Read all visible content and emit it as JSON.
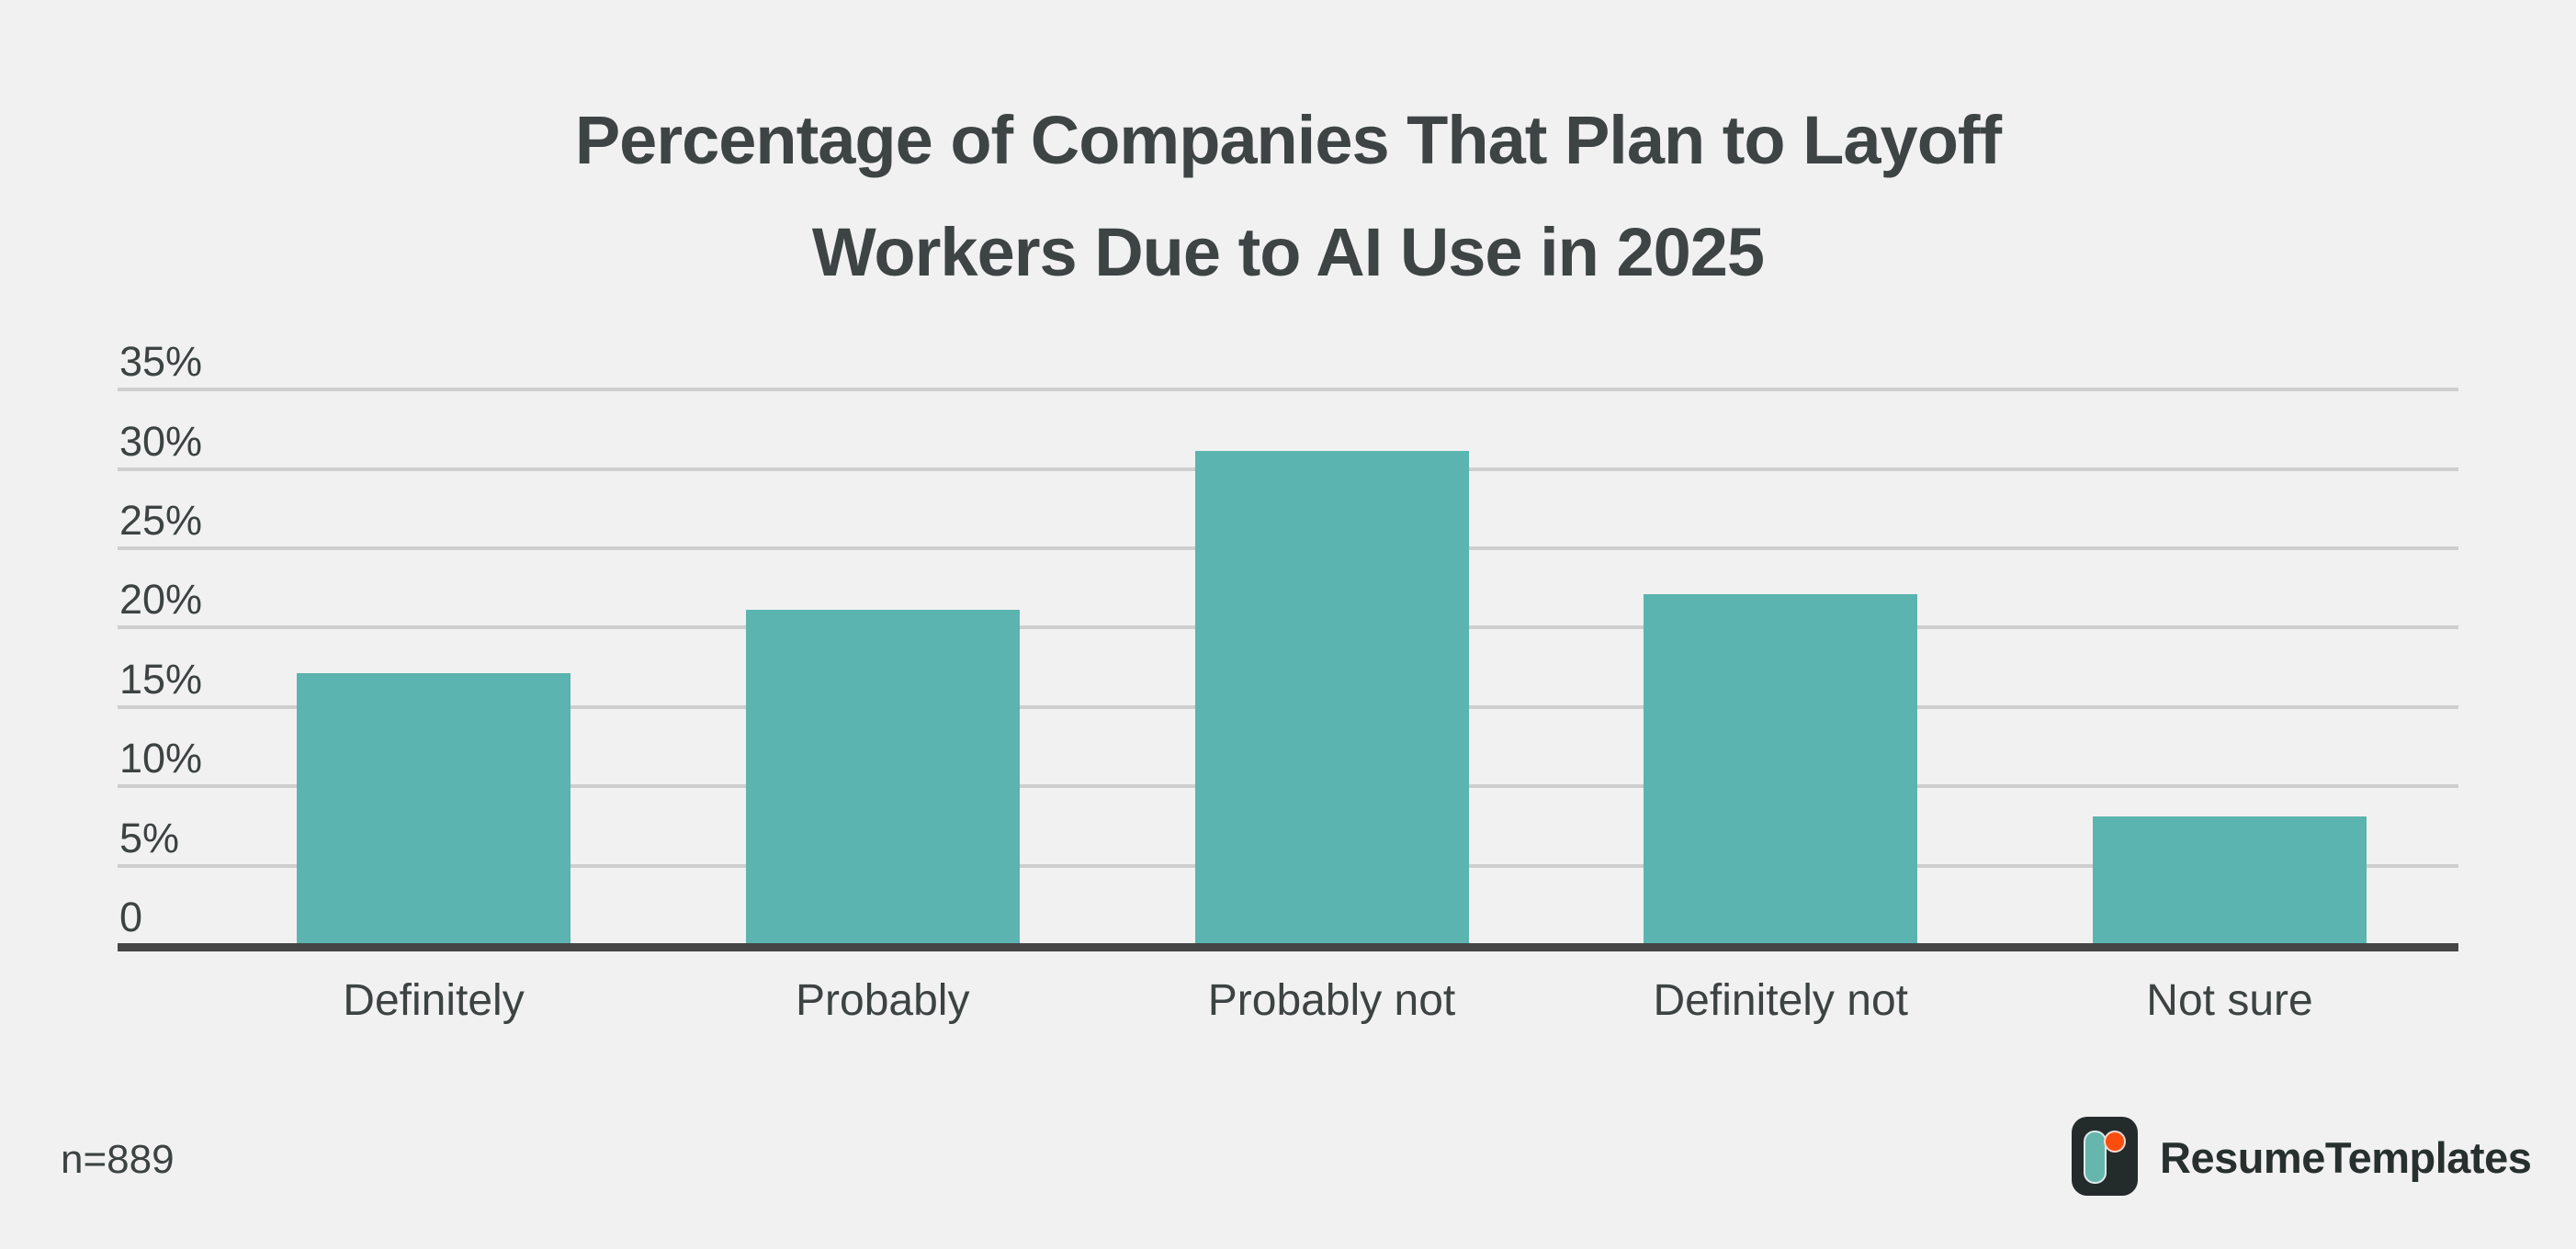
{
  "chart_data": {
    "type": "bar",
    "title": "Percentage of Companies That Plan to Layoff Workers Due to AI Use in 2025",
    "title_lines": [
      "Percentage of Companies That Plan to Layoff",
      "Workers Due to AI Use in 2025"
    ],
    "categories": [
      "Definitely",
      "Probably",
      "Probably not",
      "Definitely not",
      "Not sure"
    ],
    "values": [
      17,
      21,
      31,
      22,
      8
    ],
    "unit": "%",
    "xlabel": "",
    "ylabel": "",
    "ylim": [
      0,
      35
    ],
    "yticks": [
      {
        "label": "35%",
        "value": 35
      },
      {
        "label": "30%",
        "value": 30
      },
      {
        "label": "25%",
        "value": 25
      },
      {
        "label": "20%",
        "value": 20
      },
      {
        "label": "15%",
        "value": 15
      },
      {
        "label": "10%",
        "value": 10
      },
      {
        "label": "5%",
        "value": 5
      },
      {
        "label": "0",
        "value": 0
      }
    ],
    "grid": "horizontal",
    "legend": "none",
    "note": "n=889"
  },
  "branding": {
    "name": "ResumeTemplates"
  },
  "colors": {
    "background": "#f1f1f1",
    "bar": "#5bb4af",
    "gridline": "#cecece",
    "axis": "#464646",
    "text": "#3d4242",
    "title": "#3e4444",
    "logo_dark": "#242c2b",
    "logo_teal": "#66b6ae",
    "logo_orange": "#fb4e0e"
  }
}
